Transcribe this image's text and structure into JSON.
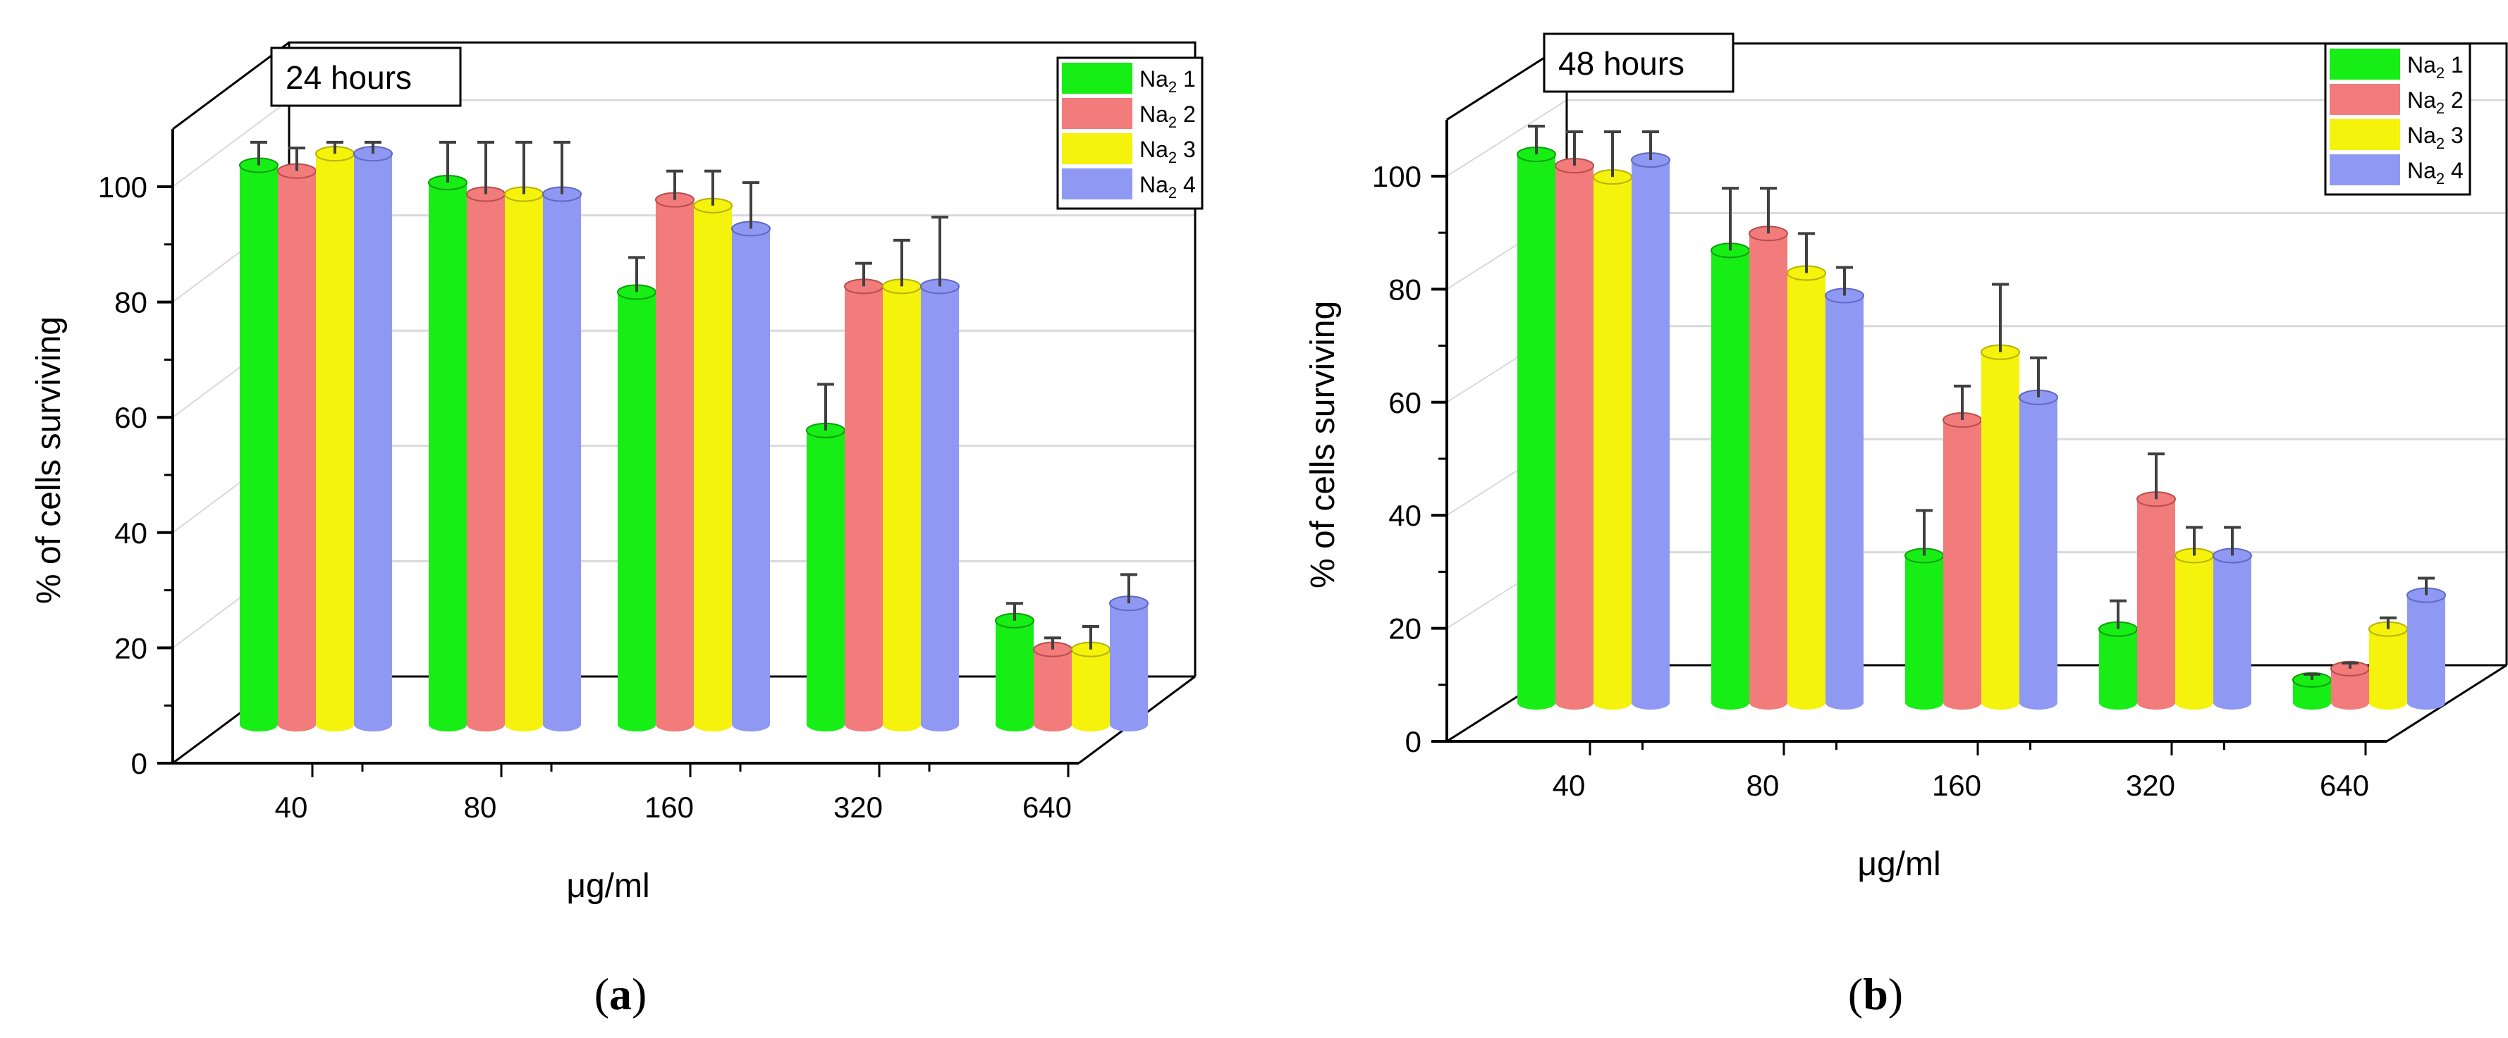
{
  "colors": {
    "series": [
      "#16ee16",
      "#f27b7b",
      "#f5f20c",
      "#8f99f3"
    ],
    "series_dark": [
      "#0aa00a",
      "#b84d4d",
      "#b5b200",
      "#5f68c4"
    ],
    "grid": "#d9d9d9",
    "axis": "#000000",
    "error": "#404040"
  },
  "chart_data": [
    {
      "type": "bar",
      "panel": "a",
      "caption_open": "(",
      "caption_letter": "a",
      "caption_close": ")",
      "title": "24 hours",
      "xlabel": "μg/ml",
      "ylabel": "% of cells surviving",
      "ylim": [
        0,
        110
      ],
      "yticks": [
        0,
        20,
        40,
        60,
        80,
        100
      ],
      "categories": [
        "40",
        "80",
        "160",
        "320",
        "640"
      ],
      "legend": [
        "Na",
        "Na",
        "Na",
        "Na"
      ],
      "legend_sub": [
        "2",
        "2",
        "2",
        "2"
      ],
      "legend_num": [
        "1",
        "2",
        "3",
        "4"
      ],
      "series": [
        {
          "name": "Na2 1",
          "values": [
            97,
            94,
            75,
            51,
            18
          ],
          "errors": [
            4,
            7,
            6,
            8,
            3
          ]
        },
        {
          "name": "Na2 2",
          "values": [
            96,
            92,
            91,
            76,
            13
          ],
          "errors": [
            4,
            9,
            5,
            4,
            2
          ]
        },
        {
          "name": "Na2 3",
          "values": [
            99,
            92,
            90,
            76,
            13
          ],
          "errors": [
            2,
            9,
            6,
            8,
            4
          ]
        },
        {
          "name": "Na2 4",
          "values": [
            99,
            92,
            86,
            76,
            21
          ],
          "errors": [
            2,
            9,
            8,
            12,
            5
          ]
        }
      ]
    },
    {
      "type": "bar",
      "panel": "b",
      "caption_open": "(",
      "caption_letter": "b",
      "caption_close": ")",
      "title": "48 hours",
      "xlabel": "μg/ml",
      "ylabel": "% of cells surviving",
      "ylim": [
        0,
        110
      ],
      "yticks": [
        0,
        20,
        40,
        60,
        80,
        100
      ],
      "categories": [
        "40",
        "80",
        "160",
        "320",
        "640"
      ],
      "legend": [
        "Na",
        "Na",
        "Na",
        "Na"
      ],
      "legend_sub": [
        "2",
        "2",
        "2",
        "2"
      ],
      "legend_num": [
        "1",
        "2",
        "3",
        "4"
      ],
      "series": [
        {
          "name": "Na2 1",
          "values": [
            97,
            80,
            26,
            13,
            4
          ],
          "errors": [
            5,
            11,
            8,
            5,
            1
          ]
        },
        {
          "name": "Na2 2",
          "values": [
            95,
            83,
            50,
            36,
            6
          ],
          "errors": [
            6,
            8,
            6,
            8,
            1
          ]
        },
        {
          "name": "Na2 3",
          "values": [
            93,
            76,
            62,
            26,
            13
          ],
          "errors": [
            8,
            7,
            12,
            5,
            2
          ]
        },
        {
          "name": "Na2 4",
          "values": [
            96,
            72,
            54,
            26,
            19
          ],
          "errors": [
            5,
            5,
            7,
            5,
            3
          ]
        }
      ]
    }
  ]
}
